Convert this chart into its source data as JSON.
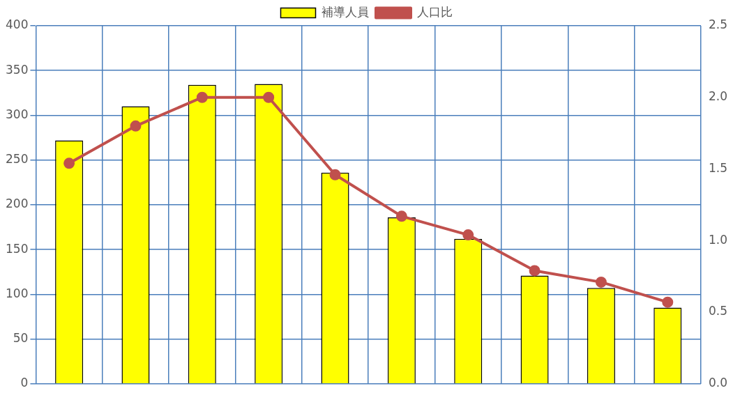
{
  "chart_data": {
    "type": "bar",
    "categories": [
      null,
      null,
      null,
      null,
      null,
      null,
      null,
      null,
      null,
      null
    ],
    "series": [
      {
        "name": "補導人員",
        "color": "#ffff00",
        "values": [
          272,
          310,
          334,
          335,
          236,
          186,
          162,
          121,
          107,
          85
        ]
      },
      {
        "name": "人口比",
        "type": "line",
        "axis": "y2",
        "color": "#c0504d",
        "values": [
          1.54,
          1.8,
          2.0,
          2.0,
          1.46,
          1.17,
          1.04,
          0.79,
          0.71,
          0.57
        ]
      }
    ],
    "ylim": [
      0,
      400
    ],
    "yticks": [
      0,
      50,
      100,
      150,
      200,
      250,
      300,
      350,
      400
    ],
    "y2lim": [
      0,
      2.5
    ],
    "y2ticks": [
      {
        "value": 0,
        "label": "0.0"
      },
      {
        "value": 0.5,
        "label": "0.5"
      },
      {
        "value": 1,
        "label": "1.0"
      },
      {
        "value": 1.5,
        "label": "1.5"
      },
      {
        "value": 2,
        "label": "2.0"
      },
      {
        "value": 2.5,
        "label": "2.5"
      }
    ],
    "grid": true,
    "legend": "top",
    "marker": "circle",
    "line_style": "solid"
  }
}
